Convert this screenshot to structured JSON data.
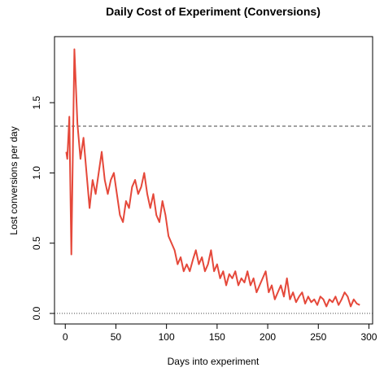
{
  "chart_data": {
    "type": "line",
    "title": "Daily Cost of Experiment (Conversions)",
    "x_label": "Days into experiment",
    "y_label": "Lost conversions per day",
    "x": [
      1,
      2,
      4,
      6,
      9,
      12,
      15,
      18,
      21,
      24,
      27,
      30,
      33,
      36,
      39,
      42,
      45,
      48,
      51,
      54,
      57,
      60,
      63,
      66,
      69,
      72,
      75,
      78,
      81,
      84,
      87,
      90,
      93,
      96,
      99,
      102,
      105,
      108,
      111,
      114,
      117,
      120,
      123,
      126,
      129,
      132,
      135,
      138,
      141,
      144,
      147,
      150,
      153,
      156,
      159,
      162,
      165,
      168,
      171,
      174,
      177,
      180,
      183,
      186,
      189,
      192,
      195,
      198,
      201,
      204,
      207,
      210,
      213,
      216,
      219,
      222,
      225,
      228,
      231,
      234,
      237,
      240,
      243,
      246,
      249,
      252,
      255,
      258,
      261,
      264,
      267,
      270,
      273,
      276,
      279,
      282,
      285,
      288,
      291
    ],
    "series": [
      {
        "name": "Lost conversions",
        "color": "#e5483a",
        "values": [
          1.15,
          1.1,
          1.4,
          0.42,
          1.88,
          1.35,
          1.1,
          1.25,
          1.0,
          0.75,
          0.95,
          0.85,
          1.0,
          1.15,
          0.95,
          0.85,
          0.95,
          1.0,
          0.85,
          0.7,
          0.65,
          0.8,
          0.75,
          0.9,
          0.95,
          0.85,
          0.9,
          1.0,
          0.85,
          0.75,
          0.85,
          0.7,
          0.65,
          0.8,
          0.7,
          0.55,
          0.5,
          0.45,
          0.35,
          0.4,
          0.3,
          0.35,
          0.3,
          0.38,
          0.45,
          0.35,
          0.4,
          0.3,
          0.35,
          0.45,
          0.3,
          0.35,
          0.25,
          0.3,
          0.2,
          0.28,
          0.25,
          0.3,
          0.2,
          0.25,
          0.22,
          0.3,
          0.2,
          0.25,
          0.15,
          0.2,
          0.25,
          0.3,
          0.15,
          0.2,
          0.1,
          0.15,
          0.2,
          0.12,
          0.25,
          0.1,
          0.15,
          0.08,
          0.12,
          0.15,
          0.07,
          0.12,
          0.08,
          0.1,
          0.06,
          0.12,
          0.1,
          0.05,
          0.1,
          0.08,
          0.12,
          0.06,
          0.1,
          0.15,
          0.12,
          0.05,
          0.1,
          0.07,
          0.06
        ]
      }
    ],
    "hlines": [
      {
        "value": 1.333,
        "style": "dashed"
      },
      {
        "value": 0,
        "style": "dotted"
      }
    ],
    "xlim": [
      -10.64,
      303.64
    ],
    "ylim": [
      -0.075,
      1.97
    ],
    "xticks": [
      0,
      50,
      100,
      150,
      200,
      250,
      300
    ],
    "yticks": [
      {
        "value": 0,
        "label": "0.0"
      },
      {
        "value": 0.5,
        "label": "0.5"
      },
      {
        "value": 1,
        "label": "1.0"
      },
      {
        "value": 1.5,
        "label": "1.5"
      }
    ]
  }
}
